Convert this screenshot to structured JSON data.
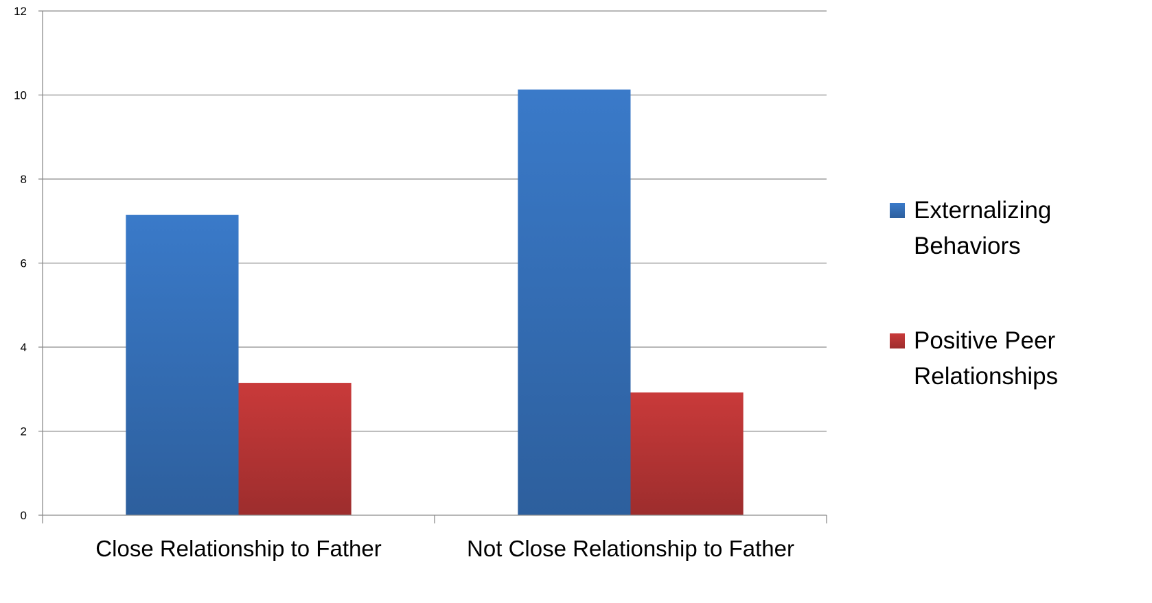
{
  "colors": {
    "series_0": "#3a7ac9",
    "series_1": "#c93a3a",
    "gridline": "#8c8c8c",
    "axis": "#8c8c8c",
    "text": "#000000"
  },
  "chart_data": {
    "type": "bar",
    "title": "",
    "xlabel": "",
    "ylabel": "",
    "categories": [
      "Close Relationship to Father",
      "Not Close Relationship to Father"
    ],
    "series": [
      {
        "name": "Externalizing Behaviors",
        "name_lines": [
          "Externalizing",
          "Behaviors"
        ],
        "values": [
          7.15,
          10.13
        ]
      },
      {
        "name": "Positive Peer Relationships",
        "name_lines": [
          "Positive Peer",
          "Relationships"
        ],
        "values": [
          3.15,
          2.92
        ]
      }
    ],
    "ylim": [
      0,
      12
    ],
    "yticks": [
      "0",
      "2",
      "4",
      "6",
      "8",
      "10",
      "12"
    ],
    "grid": true,
    "legend_position": "right"
  }
}
